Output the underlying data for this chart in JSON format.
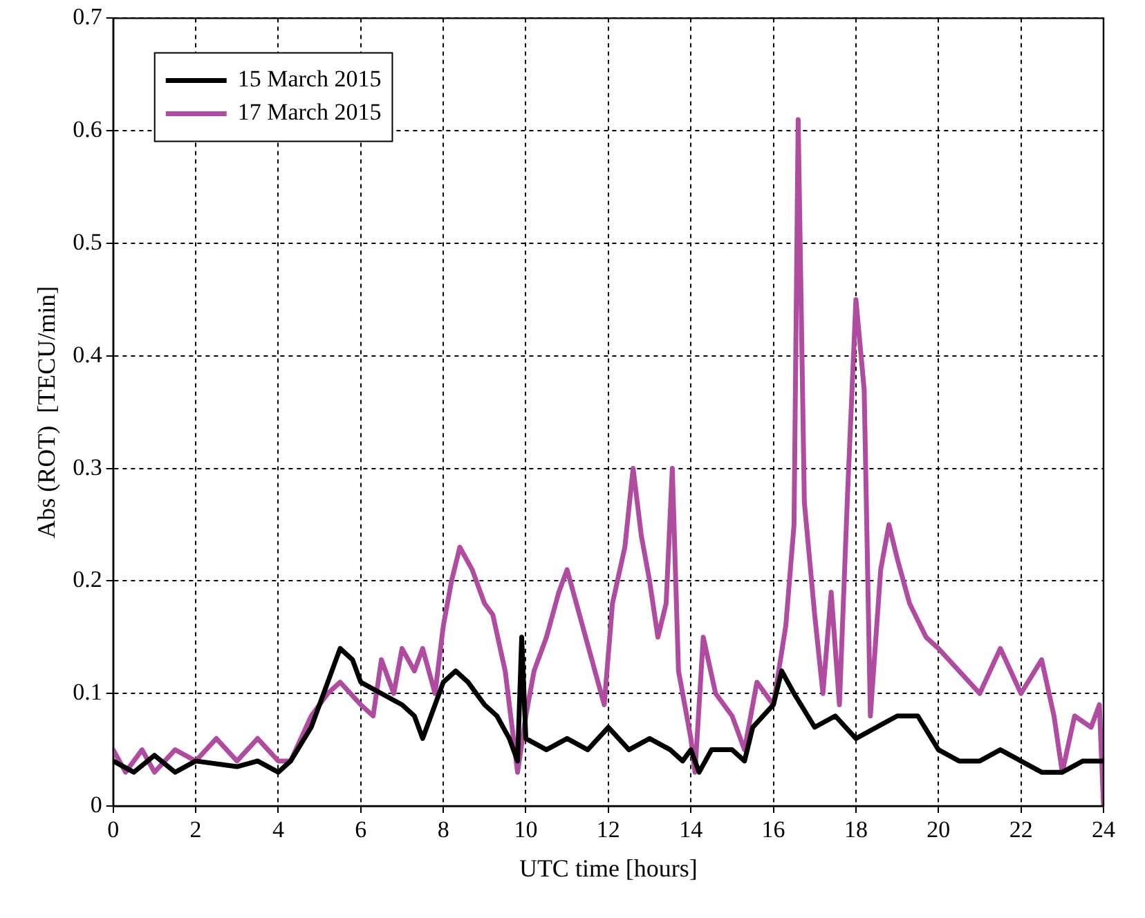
{
  "chart_data": {
    "type": "line",
    "xlabel": "UTC time [hours]",
    "ylabel": "Abs (ROT)  [TECU/min]",
    "xlim": [
      0,
      24
    ],
    "xticks": [
      0,
      2,
      4,
      6,
      8,
      10,
      12,
      14,
      16,
      18,
      20,
      22,
      24
    ],
    "ylim": [
      0,
      0.7
    ],
    "yticks": [
      0,
      0.1,
      0.2,
      0.3,
      0.4,
      0.5,
      0.6,
      0.7
    ],
    "grid": true,
    "legend": "top left",
    "marker": "none",
    "line_style": "solid",
    "series": [
      {
        "name": "15 March 2015",
        "color": "#000000",
        "x": [
          0,
          0.5,
          1,
          1.5,
          2,
          3,
          3.5,
          4,
          4.3,
          4.8,
          5.2,
          5.5,
          5.8,
          6,
          6.5,
          7,
          7.3,
          7.5,
          7.8,
          8,
          8.3,
          8.6,
          9,
          9.3,
          9.6,
          9.8,
          9.9,
          10,
          10.5,
          11,
          11.5,
          12,
          12.5,
          13,
          13.5,
          13.8,
          14,
          14.2,
          14.5,
          15,
          15.3,
          15.5,
          16,
          16.2,
          16.5,
          17,
          17.5,
          18,
          18.5,
          19,
          19.5,
          20,
          20.5,
          21,
          21.5,
          22,
          22.5,
          23,
          23.5,
          24
        ],
        "values": [
          0.04,
          0.03,
          0.045,
          0.03,
          0.04,
          0.035,
          0.04,
          0.03,
          0.04,
          0.07,
          0.11,
          0.14,
          0.13,
          0.11,
          0.1,
          0.09,
          0.08,
          0.06,
          0.09,
          0.11,
          0.12,
          0.11,
          0.09,
          0.08,
          0.06,
          0.04,
          0.15,
          0.06,
          0.05,
          0.06,
          0.05,
          0.07,
          0.05,
          0.06,
          0.05,
          0.04,
          0.05,
          0.03,
          0.05,
          0.05,
          0.04,
          0.07,
          0.09,
          0.12,
          0.1,
          0.07,
          0.08,
          0.06,
          0.07,
          0.08,
          0.08,
          0.05,
          0.04,
          0.04,
          0.05,
          0.04,
          0.03,
          0.03,
          0.04,
          0.04
        ]
      },
      {
        "name": "17 March 2015",
        "color": "#b04ca0",
        "x": [
          0,
          0.3,
          0.7,
          1,
          1.5,
          2,
          2.5,
          3,
          3.5,
          4,
          4.3,
          4.8,
          5.2,
          5.5,
          6,
          6.3,
          6.5,
          6.8,
          7,
          7.3,
          7.5,
          7.8,
          8,
          8.2,
          8.4,
          8.7,
          9,
          9.2,
          9.5,
          9.8,
          10,
          10.2,
          10.5,
          10.8,
          11,
          11.3,
          11.6,
          11.9,
          12.1,
          12.4,
          12.6,
          12.8,
          13,
          13.2,
          13.4,
          13.55,
          13.7,
          14,
          14.1,
          14.3,
          14.6,
          15,
          15.3,
          15.6,
          16,
          16.3,
          16.5,
          16.6,
          16.75,
          17,
          17.2,
          17.4,
          17.6,
          17.8,
          18,
          18.2,
          18.35,
          18.6,
          18.8,
          19,
          19.3,
          19.7,
          20,
          20.5,
          21,
          21.5,
          22,
          22.5,
          22.8,
          23,
          23.3,
          23.7,
          23.9,
          24
        ],
        "values": [
          0.05,
          0.03,
          0.05,
          0.03,
          0.05,
          0.04,
          0.06,
          0.04,
          0.06,
          0.04,
          0.04,
          0.08,
          0.1,
          0.11,
          0.09,
          0.08,
          0.13,
          0.1,
          0.14,
          0.12,
          0.14,
          0.1,
          0.16,
          0.2,
          0.23,
          0.21,
          0.18,
          0.17,
          0.12,
          0.03,
          0.08,
          0.12,
          0.15,
          0.19,
          0.21,
          0.17,
          0.13,
          0.09,
          0.18,
          0.23,
          0.3,
          0.24,
          0.2,
          0.15,
          0.18,
          0.3,
          0.12,
          0.06,
          0.03,
          0.15,
          0.1,
          0.08,
          0.05,
          0.11,
          0.09,
          0.16,
          0.25,
          0.61,
          0.27,
          0.17,
          0.1,
          0.19,
          0.09,
          0.28,
          0.45,
          0.37,
          0.08,
          0.21,
          0.25,
          0.22,
          0.18,
          0.15,
          0.14,
          0.12,
          0.1,
          0.14,
          0.1,
          0.13,
          0.08,
          0.03,
          0.08,
          0.07,
          0.09,
          0
        ]
      }
    ]
  }
}
